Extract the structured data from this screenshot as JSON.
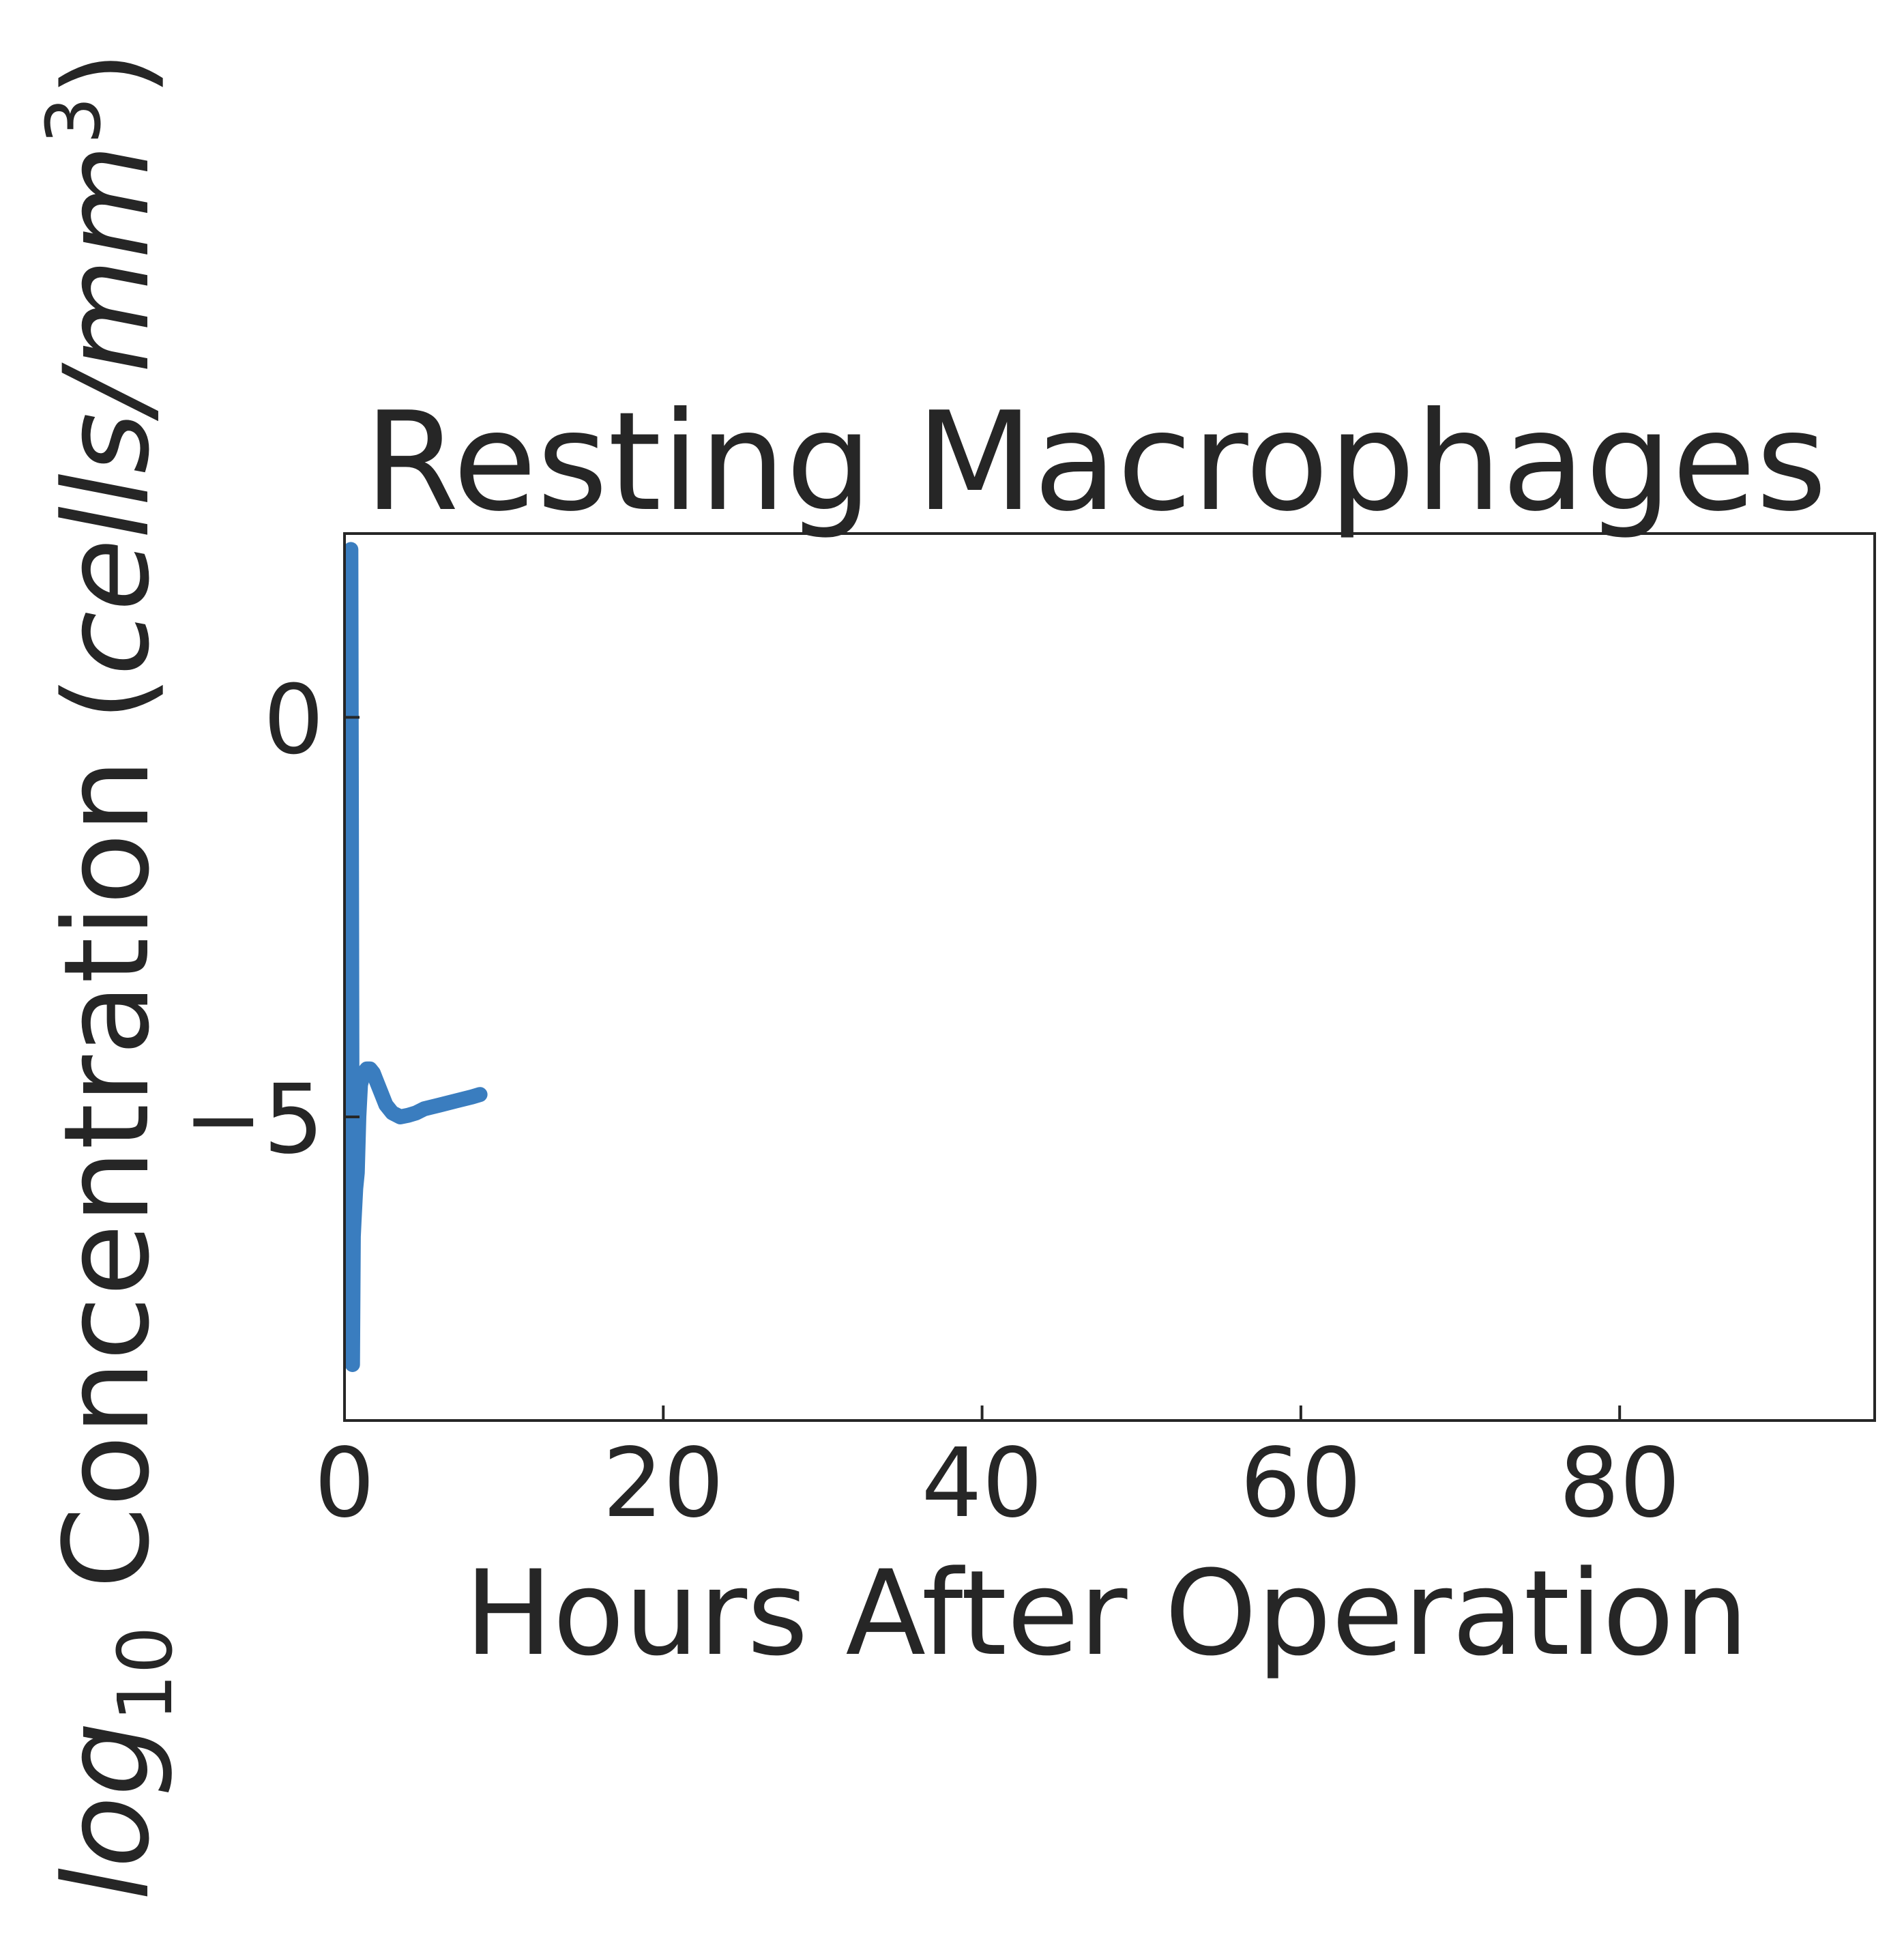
{
  "chart_data": {
    "type": "line",
    "title": "Resting Macrophages",
    "xlabel": "Hours After Operation",
    "ylabel": {
      "prefix": "log",
      "subscript": "10",
      "main": " Concentration (",
      "units_italic": "cells/mm",
      "units_sup": "3",
      "suffix": ")"
    },
    "xlim": [
      0,
      96
    ],
    "ylim": [
      -8.8,
      2.3
    ],
    "xticks": [
      0,
      20,
      40,
      60,
      80
    ],
    "yticks": [
      0,
      -5
    ],
    "ytick_labels": [
      "0",
      "−5"
    ],
    "grid": false,
    "series": [
      {
        "color": "#3a7dbf",
        "x": [
          0.4,
          0.45,
          0.5,
          0.55,
          0.6,
          0.7,
          0.8,
          0.9,
          1.0,
          1.2,
          1.4,
          1.6,
          1.8,
          2.0,
          2.3,
          2.6,
          3.0,
          3.5,
          4.0,
          4.5,
          5.0,
          6.0,
          7.0,
          8.0,
          8.5
        ],
        "y": [
          2.1,
          -3.0,
          -8.1,
          -6.5,
          -6.3,
          -5.9,
          -5.7,
          -5.0,
          -4.6,
          -4.45,
          -4.4,
          -4.4,
          -4.45,
          -4.55,
          -4.7,
          -4.85,
          -4.95,
          -5.0,
          -4.98,
          -4.95,
          -4.9,
          -4.85,
          -4.8,
          -4.75,
          -4.72
        ]
      }
    ]
  }
}
